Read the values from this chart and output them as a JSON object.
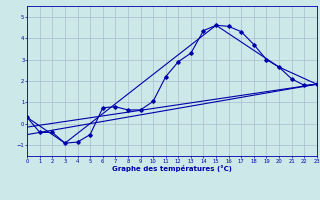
{
  "xlabel": "Graphe des températures (°C)",
  "bg_color": "#cce8e8",
  "grid_color": "#aabccc",
  "line_color": "#0000aa",
  "xlim": [
    0,
    23
  ],
  "ylim": [
    -1.5,
    5.5
  ],
  "xticks": [
    0,
    1,
    2,
    3,
    4,
    5,
    6,
    7,
    8,
    9,
    10,
    11,
    12,
    13,
    14,
    15,
    16,
    17,
    18,
    19,
    20,
    21,
    22,
    23
  ],
  "yticks": [
    -1,
    0,
    1,
    2,
    3,
    4,
    5
  ],
  "curve1_x": [
    0,
    1,
    2,
    3,
    4,
    5,
    6,
    7,
    8,
    9,
    10,
    11,
    12,
    13,
    14,
    15,
    16,
    17,
    18,
    19,
    20,
    21,
    22,
    23
  ],
  "curve1_y": [
    0.3,
    -0.4,
    -0.4,
    -0.9,
    -0.85,
    -0.5,
    0.75,
    0.8,
    0.65,
    0.65,
    1.05,
    2.2,
    2.9,
    3.3,
    4.35,
    4.6,
    4.55,
    4.3,
    3.7,
    3.0,
    2.65,
    2.1,
    1.8,
    1.85
  ],
  "curve2_x": [
    0,
    3,
    15,
    20,
    23
  ],
  "curve2_y": [
    0.3,
    -0.9,
    4.6,
    2.65,
    1.85
  ],
  "curve3_x": [
    0,
    23
  ],
  "curve3_y": [
    -0.5,
    1.85
  ],
  "curve4_x": [
    0,
    23
  ],
  "curve4_y": [
    -0.15,
    1.85
  ]
}
